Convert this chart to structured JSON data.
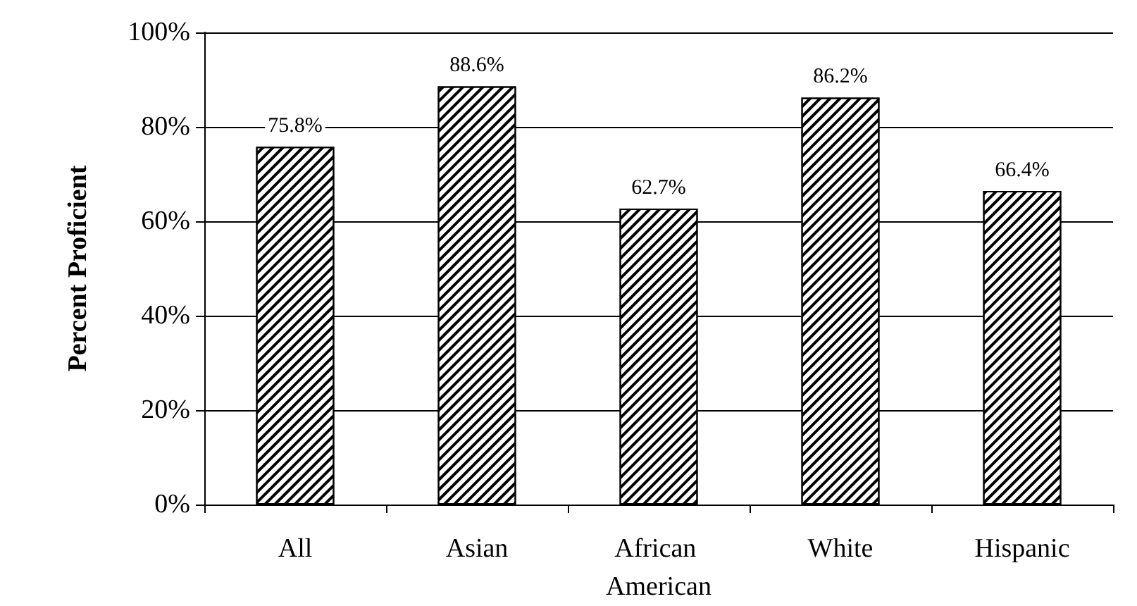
{
  "chart_data": {
    "type": "bar",
    "ylabel": "Percent Proficient",
    "categories": [
      "All",
      "Asian",
      "African American",
      "White",
      "Hispanic"
    ],
    "values": [
      75.8,
      88.6,
      62.7,
      86.2,
      66.4
    ],
    "value_labels": [
      "75.8%",
      "88.6%",
      "62.7%",
      "86.2%",
      "66.4%"
    ],
    "color": "#000000",
    "ylim": [
      0,
      100
    ],
    "yticks": [
      {
        "value": 0,
        "label": "0%"
      },
      {
        "value": 20,
        "label": "20%"
      },
      {
        "value": 40,
        "label": "40%"
      },
      {
        "value": 60,
        "label": "60%"
      },
      {
        "value": 80,
        "label": "80%"
      },
      {
        "value": 100,
        "label": "100%"
      }
    ],
    "grid": "y"
  }
}
